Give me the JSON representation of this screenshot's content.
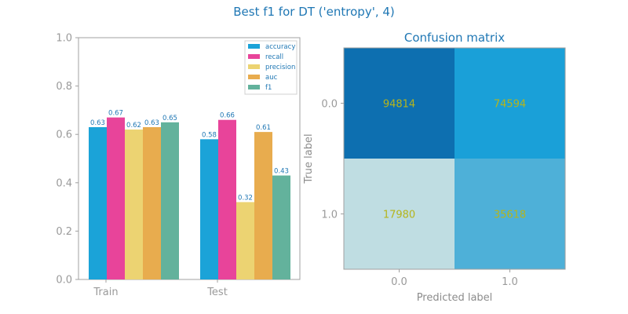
{
  "figure": {
    "title": "Best f1 for DT ('entropy', 4)"
  },
  "chart_data": [
    {
      "type": "bar",
      "categories": [
        "Train",
        "Test"
      ],
      "series": [
        {
          "name": "accuracy",
          "color": "#1ba3d8",
          "values": [
            0.63,
            0.58
          ]
        },
        {
          "name": "recall",
          "color": "#e8449a",
          "values": [
            0.67,
            0.66
          ]
        },
        {
          "name": "precision",
          "color": "#ecd372",
          "values": [
            0.62,
            0.32
          ]
        },
        {
          "name": "auc",
          "color": "#e8ac4e",
          "values": [
            0.63,
            0.61
          ]
        },
        {
          "name": "f1",
          "color": "#63b29c",
          "values": [
            0.65,
            0.43
          ]
        }
      ],
      "ylim": [
        0,
        1
      ],
      "yticks": [
        "0.0",
        "0.2",
        "0.4",
        "0.6",
        "0.8",
        "1.0"
      ],
      "legend": "top-right",
      "grid": false
    },
    {
      "type": "heatmap",
      "title": "Confusion matrix",
      "xlabel": "Predicted label",
      "ylabel": "True label",
      "xticks": [
        "0.0",
        "1.0"
      ],
      "yticks": [
        "0.0",
        "1.0"
      ],
      "matrix": [
        [
          94814,
          74594
        ],
        [
          17980,
          35618
        ]
      ],
      "colors": [
        [
          "#0d6fb0",
          "#1aa0d8"
        ],
        [
          "#bfdde2",
          "#4eb0d8"
        ]
      ]
    }
  ]
}
